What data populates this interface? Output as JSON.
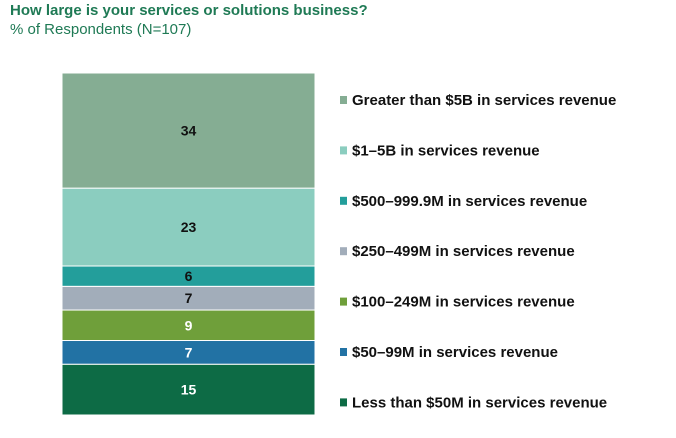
{
  "header": {
    "title": "How large is your services or solutions business?",
    "subtitle": "% of Respondents (N=107)"
  },
  "chart_data": {
    "type": "bar",
    "stacked": true,
    "title": "How large is your services or solutions business?",
    "subtitle": "% of Respondents (N=107)",
    "legend_position": "right",
    "grid": false,
    "ylim": [
      0,
      101
    ],
    "series": [
      {
        "name": "Less than $50M in services revenue",
        "value": 15,
        "label": "15",
        "color": "#0d6b45",
        "label_color": "#ffffff"
      },
      {
        "name": "$50–99M in services revenue",
        "value": 7,
        "label": "7",
        "color": "#2272a4",
        "label_color": "#ffffff"
      },
      {
        "name": "$100–249M in services revenue",
        "value": 9,
        "label": "9",
        "color": "#6f9f3a",
        "label_color": "#ffffff"
      },
      {
        "name": "$250–499M in services revenue",
        "value": 7,
        "label": "7",
        "color": "#a2adba",
        "label_color": "#111111"
      },
      {
        "name": "$500–999.9M in services revenue",
        "value": 6,
        "label": "6",
        "color": "#239e9b",
        "label_color": "#111111"
      },
      {
        "name": "$1–5B in services revenue",
        "value": 23,
        "label": "23",
        "color": "#8bcdbf",
        "label_color": "#111111"
      },
      {
        "name": "Greater than $5B in services revenue",
        "value": 34,
        "label": "34",
        "color": "#85ad93",
        "label_color": "#111111"
      }
    ]
  }
}
